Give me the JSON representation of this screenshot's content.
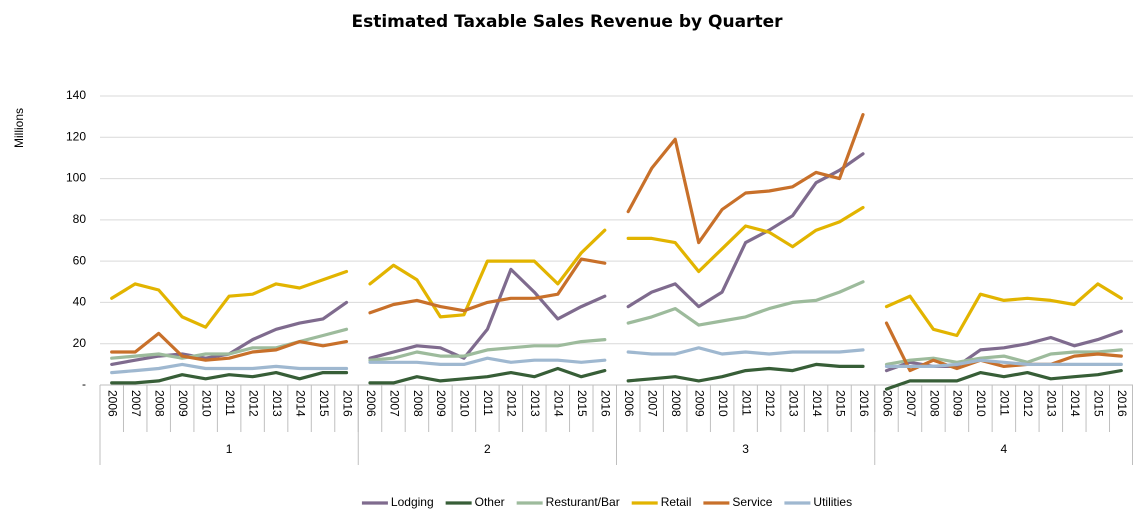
{
  "chart_data": {
    "type": "line",
    "title": "Estimated Taxable Sales Revenue by Quarter",
    "y_label": "Millions",
    "groups": [
      "1",
      "2",
      "3",
      "4"
    ],
    "categories": [
      "2006",
      "2007",
      "2008",
      "2009",
      "2010",
      "2011",
      "2012",
      "2013",
      "2014",
      "2015",
      "2016"
    ],
    "ylim": [
      0,
      140
    ],
    "yticks": [
      {
        "value": 0,
        "label": "-"
      },
      20,
      40,
      60,
      80,
      100,
      120,
      140
    ],
    "grid": true,
    "legend": "bottom",
    "series": [
      {
        "name": "Lodging",
        "color": "#7f6b8e",
        "values": [
          [
            10,
            12,
            14,
            15,
            13,
            15,
            22,
            27,
            30,
            32,
            40
          ],
          [
            13,
            16,
            19,
            18,
            13,
            27,
            56,
            45,
            32,
            38,
            43
          ],
          [
            38,
            45,
            49,
            38,
            45,
            69,
            75,
            82,
            98,
            104,
            112
          ],
          [
            7,
            11,
            9,
            9,
            17,
            18,
            20,
            23,
            19,
            22,
            26
          ]
        ]
      },
      {
        "name": "Other",
        "color": "#375e37",
        "values": [
          [
            1,
            1,
            2,
            5,
            3,
            5,
            4,
            6,
            3,
            6,
            6
          ],
          [
            1,
            1,
            4,
            2,
            3,
            4,
            6,
            4,
            8,
            4,
            7
          ],
          [
            2,
            3,
            4,
            2,
            4,
            7,
            8,
            7,
            10,
            9,
            9
          ],
          [
            -2,
            2,
            2,
            2,
            6,
            4,
            6,
            3,
            4,
            5,
            7
          ]
        ]
      },
      {
        "name": "Resturant/Bar",
        "color": "#9dbb9c",
        "values": [
          [
            13,
            14,
            15,
            13,
            15,
            15,
            18,
            18,
            21,
            24,
            27
          ],
          [
            12,
            13,
            16,
            14,
            14,
            17,
            18,
            19,
            19,
            21,
            22
          ],
          [
            30,
            33,
            37,
            29,
            31,
            33,
            37,
            40,
            41,
            45,
            50
          ],
          [
            10,
            12,
            13,
            11,
            13,
            14,
            11,
            15,
            16,
            16,
            17
          ]
        ]
      },
      {
        "name": "Retail",
        "color": "#e2b400",
        "values": [
          [
            42,
            49,
            46,
            33,
            28,
            43,
            44,
            49,
            47,
            51,
            55
          ],
          [
            49,
            58,
            51,
            33,
            34,
            60,
            60,
            60,
            49,
            64,
            75
          ],
          [
            71,
            71,
            69,
            55,
            66,
            77,
            74,
            67,
            75,
            79,
            86
          ],
          [
            38,
            43,
            27,
            24,
            44,
            41,
            42,
            41,
            39,
            49,
            42
          ]
        ]
      },
      {
        "name": "Service",
        "color": "#c8702a",
        "values": [
          [
            16,
            16,
            25,
            14,
            12,
            13,
            16,
            17,
            21,
            19,
            21
          ],
          [
            35,
            39,
            41,
            38,
            36,
            40,
            42,
            42,
            44,
            61,
            59
          ],
          [
            84,
            105,
            119,
            69,
            85,
            93,
            94,
            96,
            103,
            100,
            131
          ],
          [
            30,
            7,
            12,
            8,
            12,
            9,
            10,
            10,
            14,
            15,
            14
          ]
        ]
      },
      {
        "name": "Utilities",
        "color": "#9fb8d0",
        "values": [
          [
            6,
            7,
            8,
            10,
            8,
            8,
            8,
            9,
            8,
            8,
            8
          ],
          [
            11,
            11,
            11,
            10,
            10,
            13,
            11,
            12,
            12,
            11,
            12
          ],
          [
            16,
            15,
            15,
            18,
            15,
            16,
            15,
            16,
            16,
            16,
            17
          ],
          [
            9,
            9,
            9,
            10,
            12,
            11,
            10,
            10,
            10,
            10,
            10
          ]
        ]
      }
    ]
  }
}
